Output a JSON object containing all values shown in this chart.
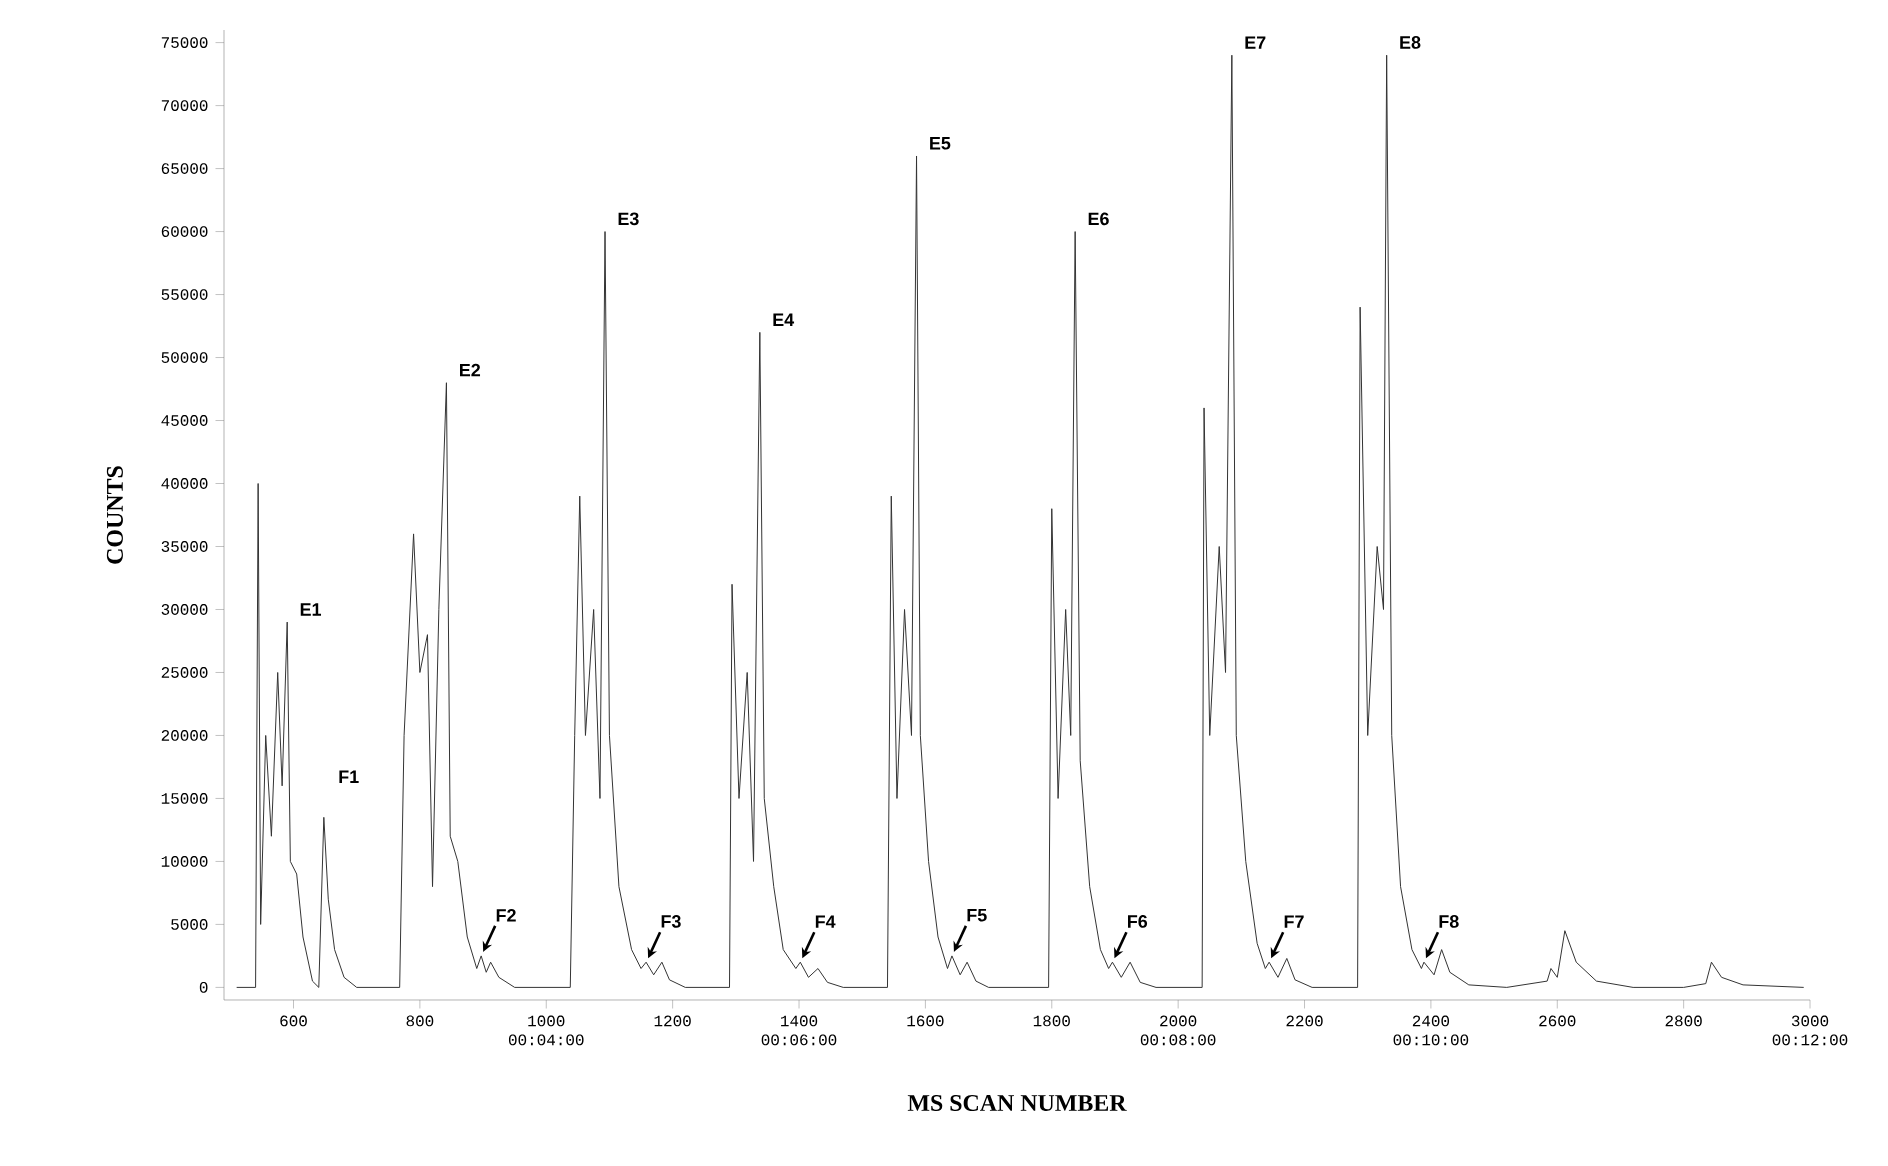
{
  "chart_data": {
    "type": "line",
    "xlabel": "MS SCAN NUMBER",
    "ylabel": "COUNTS",
    "color": "#333333",
    "xlim": [
      490,
      3000
    ],
    "ylim": [
      -1000,
      76000
    ],
    "xticks": [
      600,
      800,
      {
        "value": 1000,
        "label": "1000 00:04:00"
      },
      1200,
      {
        "value": 1400,
        "label": "1400 00:06:00"
      },
      1600,
      1800,
      {
        "value": 2000,
        "label": "2000 00:08:00"
      },
      2200,
      {
        "value": 2400,
        "label": "2400 00:10:00"
      },
      2600,
      2800,
      {
        "value": 3000,
        "label": "3000 00:12:00"
      }
    ],
    "yticks": [
      0,
      5000,
      10000,
      15000,
      20000,
      25000,
      30000,
      35000,
      40000,
      45000,
      50000,
      55000,
      60000,
      65000,
      70000,
      75000
    ],
    "x": [
      510,
      540,
      544,
      548,
      556,
      565,
      575,
      582,
      590,
      595,
      605,
      615,
      630,
      640,
      648,
      655,
      665,
      680,
      700,
      760,
      768,
      775,
      790,
      800,
      812,
      820,
      830,
      842,
      848,
      860,
      875,
      890,
      897,
      905,
      912,
      925,
      950,
      1030,
      1038,
      1045,
      1053,
      1062,
      1075,
      1085,
      1093,
      1100,
      1115,
      1135,
      1150,
      1158,
      1170,
      1183,
      1195,
      1220,
      1280,
      1290,
      1294,
      1305,
      1318,
      1328,
      1338,
      1345,
      1360,
      1375,
      1395,
      1402,
      1415,
      1430,
      1445,
      1470,
      1530,
      1540,
      1546,
      1555,
      1567,
      1578,
      1586,
      1592,
      1605,
      1620,
      1635,
      1642,
      1655,
      1666,
      1680,
      1700,
      1778,
      1795,
      1800,
      1810,
      1822,
      1830,
      1837,
      1845,
      1860,
      1877,
      1890,
      1896,
      1910,
      1924,
      1940,
      1965,
      2032,
      2038,
      2041,
      2050,
      2065,
      2075,
      2085,
      2092,
      2107,
      2125,
      2138,
      2144,
      2158,
      2172,
      2185,
      2212,
      2280,
      2284,
      2288,
      2300,
      2315,
      2325,
      2330,
      2338,
      2352,
      2370,
      2385,
      2389,
      2405,
      2417,
      2430,
      2460,
      2520,
      2584,
      2590,
      2600,
      2612,
      2630,
      2662,
      2720,
      2800,
      2835,
      2844,
      2860,
      2894,
      2990
    ],
    "values": [
      0,
      0,
      40000,
      5000,
      20000,
      12000,
      25000,
      16000,
      29000,
      10000,
      9000,
      4000,
      500,
      0,
      13500,
      7000,
      3000,
      800,
      0,
      0,
      0,
      20000,
      36000,
      25000,
      28000,
      8000,
      30000,
      48000,
      12000,
      10000,
      4000,
      1500,
      2500,
      1200,
      2000,
      800,
      0,
      0,
      0,
      20000,
      39000,
      20000,
      30000,
      15000,
      60000,
      20000,
      8000,
      3000,
      1500,
      2000,
      1000,
      2000,
      600,
      0,
      0,
      0,
      32000,
      15000,
      25000,
      10000,
      52000,
      15000,
      8000,
      3000,
      1500,
      2000,
      800,
      1500,
      400,
      0,
      0,
      0,
      39000,
      15000,
      30000,
      20000,
      66000,
      20000,
      10000,
      4000,
      1500,
      2500,
      1000,
      2000,
      500,
      0,
      0,
      0,
      38000,
      15000,
      30000,
      20000,
      60000,
      18000,
      8000,
      3000,
      1500,
      2000,
      800,
      2000,
      400,
      0,
      0,
      0,
      46000,
      20000,
      35000,
      25000,
      74000,
      20000,
      10000,
      3500,
      1500,
      2000,
      800,
      2300,
      600,
      0,
      0,
      0,
      54000,
      20000,
      35000,
      30000,
      74000,
      20000,
      8000,
      3000,
      1500,
      2000,
      1000,
      3000,
      1200,
      200,
      0,
      500,
      1500,
      800,
      4500,
      2000,
      500,
      0,
      0,
      300,
      2000,
      800,
      200,
      0
    ],
    "annotations": [
      {
        "text": "E1",
        "x": 590,
        "y": 29000
      },
      {
        "text": "E2",
        "x": 842,
        "y": 48000
      },
      {
        "text": "E3",
        "x": 1093,
        "y": 60000
      },
      {
        "text": "E4",
        "x": 1338,
        "y": 52000
      },
      {
        "text": "E5",
        "x": 1586,
        "y": 66000
      },
      {
        "text": "E6",
        "x": 1837,
        "y": 60000
      },
      {
        "text": "E7",
        "x": 2085,
        "y": 74000
      },
      {
        "text": "E8",
        "x": 2330,
        "y": 74000
      },
      {
        "text": "F1",
        "x": 648,
        "y": 13500
      },
      {
        "text": "F2",
        "x": 897,
        "y": 2500
      },
      {
        "text": "F3",
        "x": 1158,
        "y": 2000
      },
      {
        "text": "F4",
        "x": 1402,
        "y": 2000
      },
      {
        "text": "F5",
        "x": 1642,
        "y": 2500
      },
      {
        "text": "F6",
        "x": 1896,
        "y": 2000
      },
      {
        "text": "F7",
        "x": 2144,
        "y": 2000
      },
      {
        "text": "F8",
        "x": 2389,
        "y": 2000
      }
    ]
  }
}
